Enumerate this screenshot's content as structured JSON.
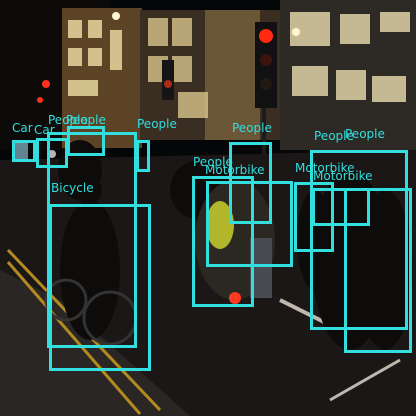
{
  "image": {
    "description_colors": {
      "box": "#33dede",
      "sky": "#050608",
      "road": "#1a1716",
      "pavement": "#2a2624",
      "building_warm": "#8a6a3a",
      "window_glow": "#e8d7a0",
      "traffic_light_red": "#ff2a10"
    }
  },
  "detections": [
    {
      "label": "Car"
    },
    {
      "label": "Car"
    },
    {
      "label": "People"
    },
    {
      "label": "People"
    },
    {
      "label": "People"
    },
    {
      "label": "Bicycle"
    },
    {
      "label": "People"
    },
    {
      "label": "Motorbike"
    },
    {
      "label": "Motorbike"
    },
    {
      "label": "Motorbike"
    },
    {
      "label": "People"
    },
    {
      "label": "People"
    }
  ]
}
